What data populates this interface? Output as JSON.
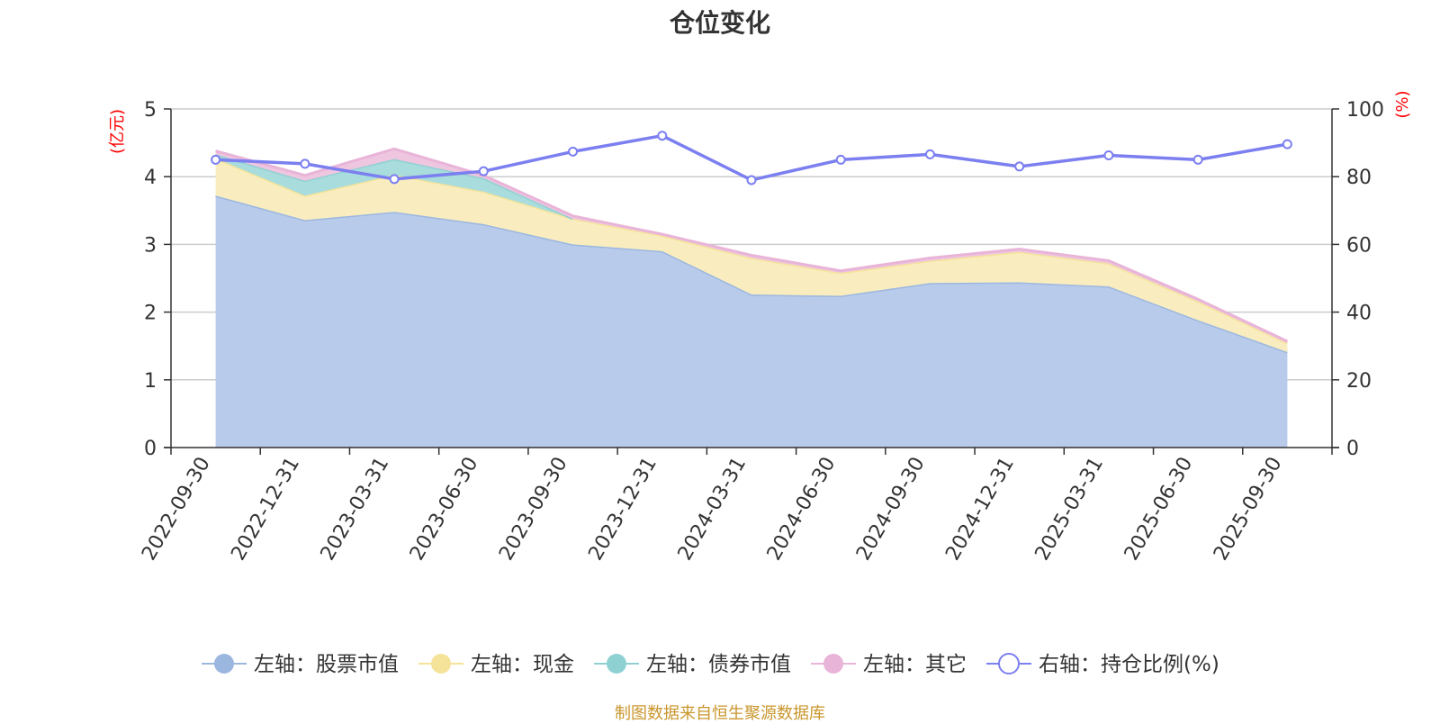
{
  "title": "仓位变化",
  "source": "制图数据来自恒生聚源数据库",
  "chart_data": {
    "type": "area",
    "title": "仓位变化",
    "x": [
      "2022-09-30",
      "2022-12-31",
      "2023-03-31",
      "2023-06-30",
      "2023-09-30",
      "2023-12-31",
      "2024-03-31",
      "2024-06-30",
      "2024-09-30",
      "2024-12-31",
      "2025-03-31",
      "2025-06-30",
      "2025-09-30"
    ],
    "left_axis": {
      "unit": "(亿元)",
      "ylim": [
        0,
        5
      ],
      "ticks": [
        "0",
        "1",
        "2",
        "3",
        "4",
        "5"
      ]
    },
    "right_axis": {
      "unit": "(%)",
      "ylim": [
        0,
        100
      ],
      "ticks": [
        "0",
        "20",
        "40",
        "60",
        "80",
        "100"
      ]
    },
    "stacked": true,
    "grid": true,
    "legend_position": "bottom",
    "series": [
      {
        "name": "左轴：股票市值",
        "axis": "left",
        "type": "area",
        "color": "#9bb7e0",
        "fill": "#b9cbea",
        "values": [
          3.72,
          3.36,
          3.48,
          3.3,
          3.0,
          2.9,
          2.26,
          2.24,
          2.43,
          2.44,
          2.38,
          1.88,
          1.41
        ]
      },
      {
        "name": "左轴：现金",
        "axis": "left",
        "type": "area",
        "color": "#f5e39a",
        "fill": "#f9edbf",
        "values": [
          0.55,
          0.36,
          0.55,
          0.48,
          0.38,
          0.23,
          0.54,
          0.34,
          0.33,
          0.45,
          0.34,
          0.28,
          0.13
        ]
      },
      {
        "name": "左轴：债券市值",
        "axis": "left",
        "type": "area",
        "color": "#8fd1d3",
        "fill": "#a9dcdc",
        "values": [
          0.06,
          0.22,
          0.23,
          0.2,
          0.0,
          0.0,
          0.0,
          0.0,
          0.0,
          0.0,
          0.0,
          0.0,
          0.0
        ]
      },
      {
        "name": "左轴：其它",
        "axis": "left",
        "type": "area",
        "color": "#e8b4d8",
        "fill": "#efc6e0",
        "values": [
          0.05,
          0.08,
          0.15,
          0.04,
          0.04,
          0.02,
          0.04,
          0.03,
          0.04,
          0.04,
          0.04,
          0.03,
          0.03
        ]
      },
      {
        "name": "右轴：持仓比例(%)",
        "axis": "right",
        "type": "line",
        "color": "#7b7ff0",
        "values": [
          85.0,
          83.8,
          79.3,
          81.6,
          87.4,
          92.1,
          79.0,
          85.0,
          86.6,
          83.0,
          86.3,
          85.0,
          89.6
        ]
      }
    ]
  }
}
